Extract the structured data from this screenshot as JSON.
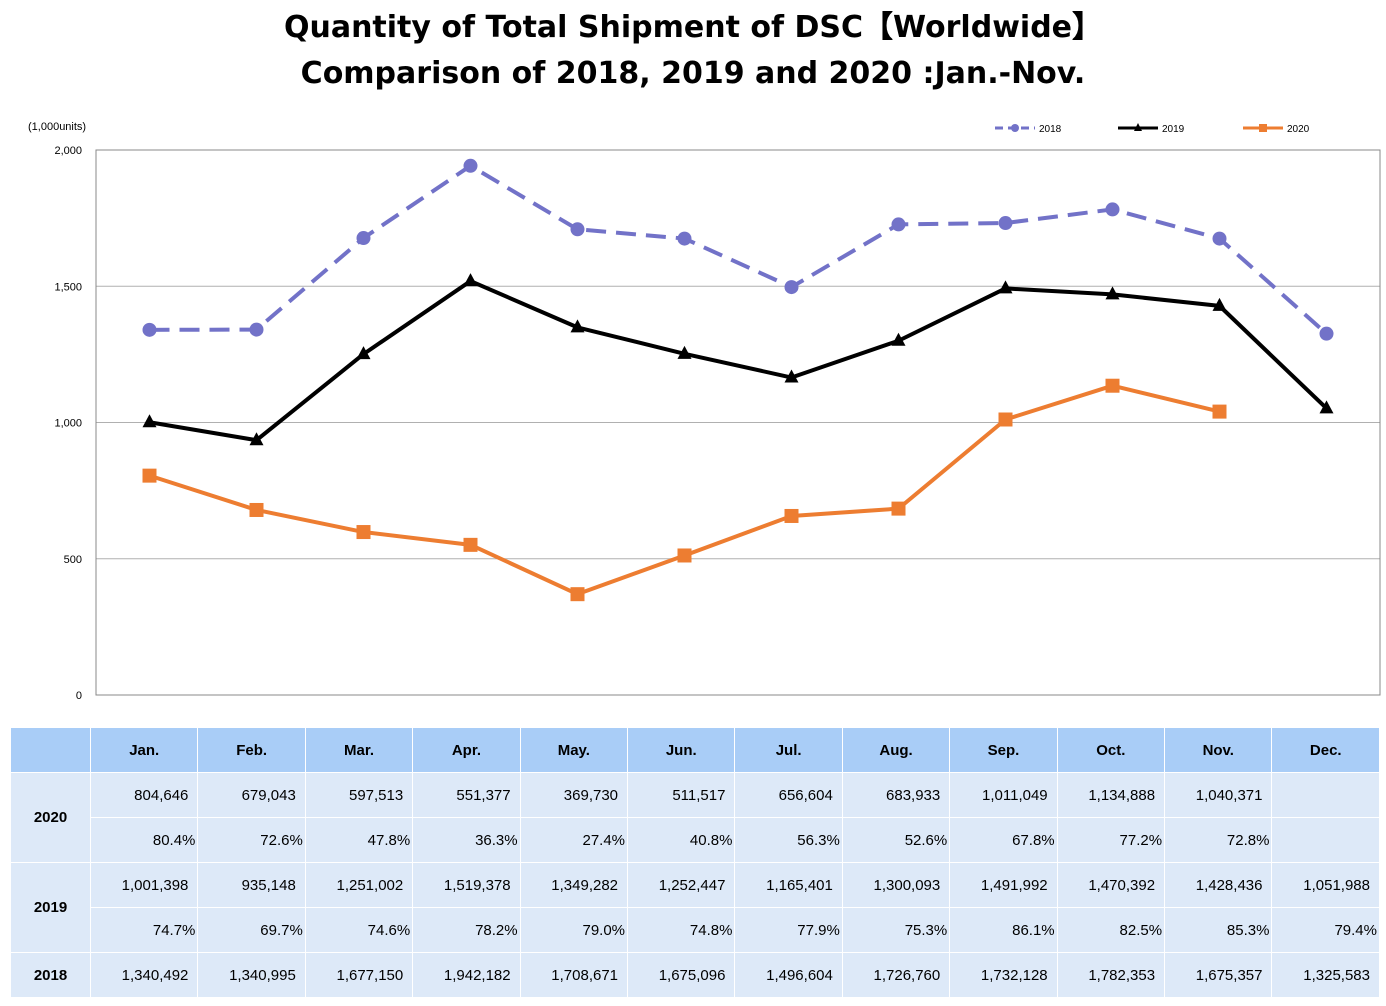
{
  "title_line1": "Quantity of Total Shipment of DSC【Worldwide】",
  "title_line2": "Comparison of 2018, 2019 and 2020 :Jan.-Nov.",
  "chart_data": {
    "type": "line",
    "ylabel": "(1,000units)",
    "ylim": [
      0,
      2000
    ],
    "yticks": [
      0,
      500,
      1000,
      1500,
      2000
    ],
    "ytick_labels": [
      "0",
      "500",
      "1,000",
      "1,500",
      "2,000"
    ],
    "grid": true,
    "legend_position": "top-right",
    "categories": [
      "Jan.",
      "Feb.",
      "Mar.",
      "Apr.",
      "May.",
      "Jun.",
      "Jul.",
      "Aug.",
      "Sep.",
      "Oct.",
      "Nov.",
      "Dec."
    ],
    "series": [
      {
        "name": "2018",
        "color": "#7272c8",
        "style": "dashed",
        "marker": "circle",
        "values": [
          1340,
          1341,
          1677,
          1942,
          1709,
          1675,
          1497,
          1727,
          1732,
          1782,
          1675,
          1326
        ]
      },
      {
        "name": "2019",
        "color": "#000000",
        "style": "solid",
        "marker": "triangle",
        "values": [
          1001,
          935,
          1251,
          1519,
          1349,
          1252,
          1165,
          1300,
          1492,
          1470,
          1428,
          1052
        ]
      },
      {
        "name": "2020",
        "color": "#ed7d31",
        "style": "solid",
        "marker": "square",
        "values": [
          805,
          679,
          598,
          551,
          370,
          512,
          657,
          684,
          1011,
          1135,
          1040,
          null
        ]
      }
    ]
  },
  "table": {
    "months": [
      "Jan.",
      "Feb.",
      "Mar.",
      "Apr.",
      "May.",
      "Jun.",
      "Jul.",
      "Aug.",
      "Sep.",
      "Oct.",
      "Nov.",
      "Dec."
    ],
    "rows": {
      "y2020": {
        "label": "2020",
        "units": [
          "804,646",
          "679,043",
          "597,513",
          "551,377",
          "369,730",
          "511,517",
          "656,604",
          "683,933",
          "1,011,049",
          "1,134,888",
          "1,040,371",
          ""
        ],
        "pct": [
          "80.4%",
          "72.6%",
          "47.8%",
          "36.3%",
          "27.4%",
          "40.8%",
          "56.3%",
          "52.6%",
          "67.8%",
          "77.2%",
          "72.8%",
          ""
        ]
      },
      "y2019": {
        "label": "2019",
        "units": [
          "1,001,398",
          "935,148",
          "1,251,002",
          "1,519,378",
          "1,349,282",
          "1,252,447",
          "1,165,401",
          "1,300,093",
          "1,491,992",
          "1,470,392",
          "1,428,436",
          "1,051,988"
        ],
        "pct": [
          "74.7%",
          "69.7%",
          "74.6%",
          "78.2%",
          "79.0%",
          "74.8%",
          "77.9%",
          "75.3%",
          "86.1%",
          "82.5%",
          "85.3%",
          "79.4%"
        ]
      },
      "y2018": {
        "label": "2018",
        "units": [
          "1,340,492",
          "1,340,995",
          "1,677,150",
          "1,942,182",
          "1,708,671",
          "1,675,096",
          "1,496,604",
          "1,726,760",
          "1,732,128",
          "1,782,353",
          "1,675,357",
          "1,325,583"
        ]
      }
    }
  }
}
